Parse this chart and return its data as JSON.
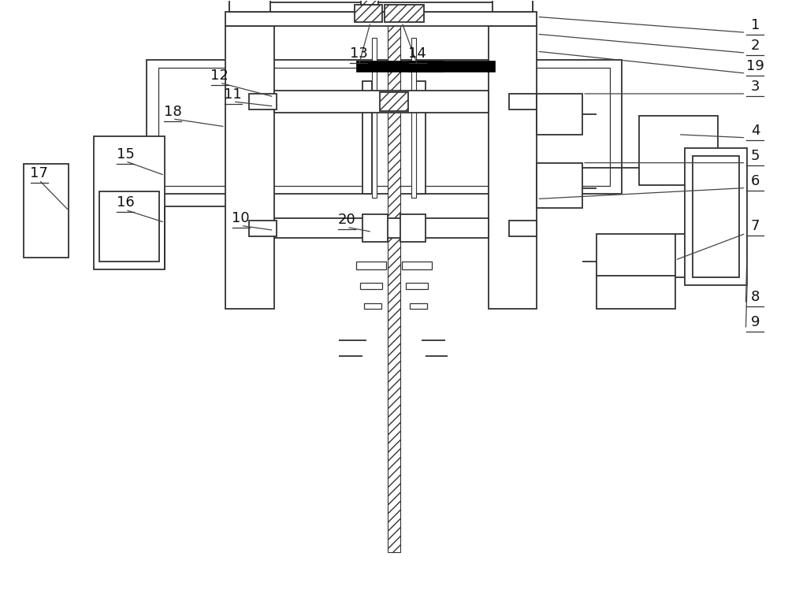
{
  "bg_color": "#ffffff",
  "line_color": "#333333",
  "figure_size": [
    10.0,
    7.82
  ],
  "dpi": 100
}
